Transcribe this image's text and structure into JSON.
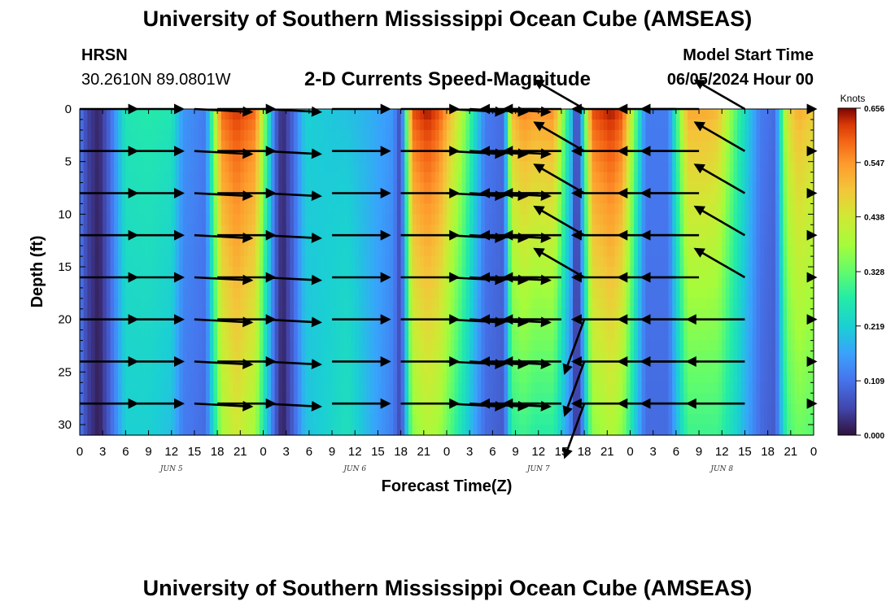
{
  "header": {
    "title": "University of Southern Mississippi Ocean Cube (AMSEAS)",
    "station": "HRSN",
    "coords": "30.2610N  89.0801W",
    "subtitle": "2-D Currents Speed-Magnitude",
    "start_label": "Model Start Time",
    "start_value": "06/05/2024 Hour 00"
  },
  "footer": {
    "title": "University of Southern Mississippi Ocean Cube (AMSEAS)"
  },
  "chart_data": {
    "type": "heatmap",
    "xlabel": "Forecast Time(Z)",
    "ylabel": "Depth (ft)",
    "x_range_hours": [
      0,
      96
    ],
    "y_range_ft": [
      0,
      31
    ],
    "x_tick_labels": [
      "0",
      "3",
      "6",
      "9",
      "12",
      "15",
      "18",
      "21",
      "0",
      "3",
      "6",
      "9",
      "12",
      "15",
      "18",
      "21",
      "0",
      "3",
      "6",
      "9",
      "12",
      "15",
      "18",
      "21",
      "0",
      "3",
      "6",
      "9",
      "12",
      "15",
      "18",
      "21",
      "0"
    ],
    "day_labels": [
      {
        "label": "JUN 5",
        "hour": 12
      },
      {
        "label": "JUN 6",
        "hour": 36
      },
      {
        "label": "JUN 7",
        "hour": 60
      },
      {
        "label": "JUN 8",
        "hour": 84
      }
    ],
    "y_ticks": [
      0,
      5,
      10,
      15,
      20,
      25,
      30
    ],
    "colorbar": {
      "units": "Knots",
      "ticks": [
        "0.000",
        "0.109",
        "0.219",
        "0.328",
        "0.438",
        "0.547",
        "0.656"
      ],
      "range": [
        0,
        0.656
      ]
    },
    "speed_profile": {
      "hours": [
        0,
        1,
        2.5,
        4,
        6,
        9,
        12,
        13.5,
        16.5,
        18.5,
        20.5,
        23,
        25.5,
        26.5,
        28,
        29.5,
        32,
        35,
        38,
        41,
        42,
        43.5,
        45.5,
        47,
        50,
        53,
        55.5,
        56.5,
        58,
        59.5,
        62,
        64.3,
        65,
        65.7,
        67,
        69.5,
        71,
        74,
        77,
        79.5,
        80.5,
        82,
        83.5,
        86,
        89,
        91,
        92.5,
        94,
        96
      ],
      "surface_knots": [
        0.12,
        0.05,
        0.02,
        0.1,
        0.26,
        0.27,
        0.26,
        0.15,
        0.12,
        0.58,
        0.62,
        0.58,
        0.1,
        0.02,
        0.1,
        0.22,
        0.21,
        0.2,
        0.18,
        0.15,
        0.05,
        0.6,
        0.64,
        0.6,
        0.4,
        0.12,
        0.1,
        0.5,
        0.56,
        0.54,
        0.55,
        0.2,
        0.02,
        0.2,
        0.6,
        0.64,
        0.6,
        0.12,
        0.12,
        0.52,
        0.52,
        0.52,
        0.5,
        0.3,
        0.12,
        0.1,
        0.45,
        0.52,
        0.48
      ],
      "bottom_knots": [
        0.12,
        0.05,
        0.01,
        0.09,
        0.22,
        0.22,
        0.2,
        0.12,
        0.1,
        0.38,
        0.44,
        0.38,
        0.09,
        0.01,
        0.09,
        0.2,
        0.22,
        0.25,
        0.18,
        0.12,
        0.05,
        0.36,
        0.4,
        0.38,
        0.25,
        0.1,
        0.08,
        0.28,
        0.3,
        0.28,
        0.28,
        0.12,
        0.01,
        0.12,
        0.36,
        0.4,
        0.36,
        0.1,
        0.1,
        0.3,
        0.3,
        0.3,
        0.3,
        0.22,
        0.1,
        0.08,
        0.3,
        0.34,
        0.32
      ]
    },
    "vectors": {
      "depths_ft": [
        0,
        4,
        8,
        12,
        16,
        20,
        24,
        28
      ],
      "hours": [
        0,
        6,
        15,
        18,
        24,
        33,
        42,
        48,
        51,
        54,
        60,
        63,
        66,
        72,
        78,
        81,
        87,
        96
      ],
      "angles_deg": [
        0,
        0,
        -3,
        0,
        -3,
        0,
        0,
        -3,
        -3,
        -3,
        180,
        180,
        150,
        180,
        180,
        180,
        150,
        0
      ],
      "deep_angles_deg": [
        0,
        0,
        -3,
        0,
        -3,
        0,
        0,
        -3,
        -3,
        -3,
        180,
        180,
        -110,
        180,
        180,
        180,
        180,
        0
      ]
    }
  }
}
